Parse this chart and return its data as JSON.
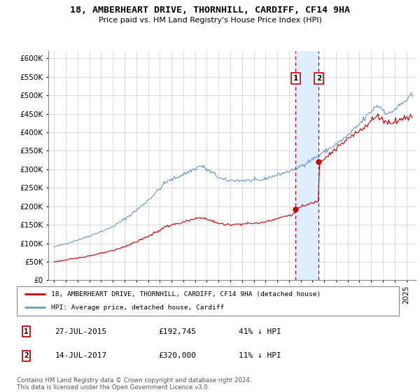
{
  "title": "18, AMBERHEART DRIVE, THORNHILL, CARDIFF, CF14 9HA",
  "subtitle": "Price paid vs. HM Land Registry's House Price Index (HPI)",
  "transaction1": {
    "date": "27-JUL-2015",
    "price": 192745,
    "label": "41% ↓ HPI",
    "year": 2015.57
  },
  "transaction2": {
    "date": "14-JUL-2017",
    "price": 320000,
    "label": "11% ↓ HPI",
    "year": 2017.53
  },
  "legend_line1": "18, AMBERHEART DRIVE, THORNHILL, CARDIFF, CF14 9HA (detached house)",
  "legend_line2": "HPI: Average price, detached house, Cardiff",
  "footnote": "Contains HM Land Registry data © Crown copyright and database right 2024.\nThis data is licensed under the Open Government Licence v3.0.",
  "red_color": "#cc0000",
  "blue_color": "#6699cc",
  "highlight_color": "#ddeeff",
  "grid_color": "#cccccc",
  "ylim": [
    0,
    600000
  ],
  "xlim": [
    1994.5,
    2025.8
  ]
}
